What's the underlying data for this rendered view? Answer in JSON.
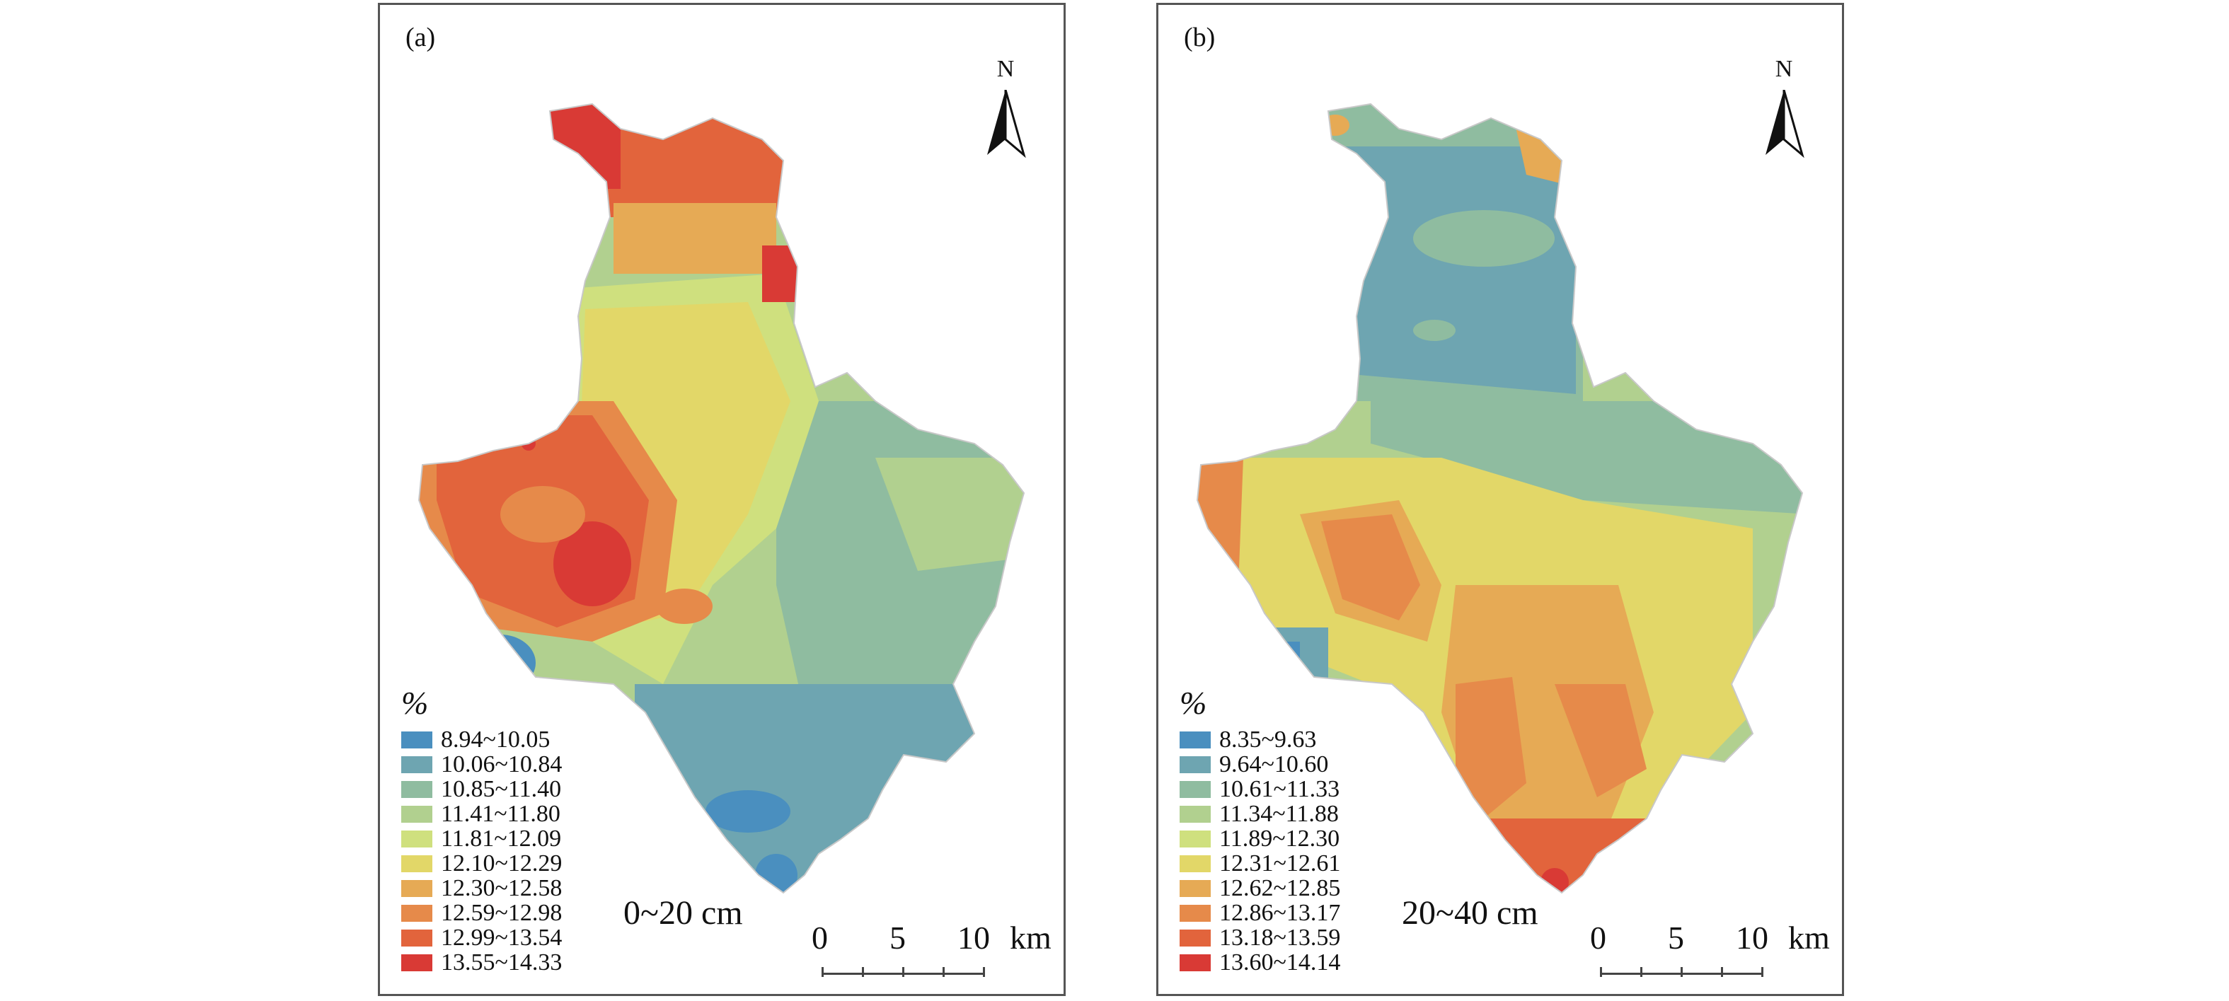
{
  "panels": [
    {
      "label": "(a)",
      "north": "N",
      "legend_unit": "%",
      "depth": "0~20 cm",
      "scale": {
        "n0": "0",
        "n1": "5",
        "n2": "10",
        "unit": "km"
      },
      "legend": [
        {
          "range": "8.94~10.05",
          "color": "#4a8fbf"
        },
        {
          "range": "10.06~10.84",
          "color": "#6ea5b1"
        },
        {
          "range": "10.85~11.40",
          "color": "#8fbca0"
        },
        {
          "range": "11.41~11.80",
          "color": "#b1d08f"
        },
        {
          "range": "11.81~12.09",
          "color": "#cfe07e"
        },
        {
          "range": "12.10~12.29",
          "color": "#e2d768"
        },
        {
          "range": "12.30~12.58",
          "color": "#e6aa55"
        },
        {
          "range": "12.59~12.98",
          "color": "#e68a4a"
        },
        {
          "range": "12.99~13.54",
          "color": "#e2643c"
        },
        {
          "range": "13.55~14.33",
          "color": "#d93a35"
        }
      ]
    },
    {
      "label": "(b)",
      "north": "N",
      "legend_unit": "%",
      "depth": "20~40 cm",
      "scale": {
        "n0": "0",
        "n1": "5",
        "n2": "10",
        "unit": "km"
      },
      "legend": [
        {
          "range": "8.35~9.63",
          "color": "#4a8fbf"
        },
        {
          "range": "9.64~10.60",
          "color": "#6ea5b1"
        },
        {
          "range": "10.61~11.33",
          "color": "#8fbca0"
        },
        {
          "range": "11.34~11.88",
          "color": "#b1d08f"
        },
        {
          "range": "11.89~12.30",
          "color": "#cfe07e"
        },
        {
          "range": "12.31~12.61",
          "color": "#e2d768"
        },
        {
          "range": "12.62~12.85",
          "color": "#e6aa55"
        },
        {
          "range": "12.86~13.17",
          "color": "#e68a4a"
        },
        {
          "range": "13.18~13.59",
          "color": "#e2643c"
        },
        {
          "range": "13.60~14.14",
          "color": "#d93a35"
        }
      ]
    }
  ]
}
